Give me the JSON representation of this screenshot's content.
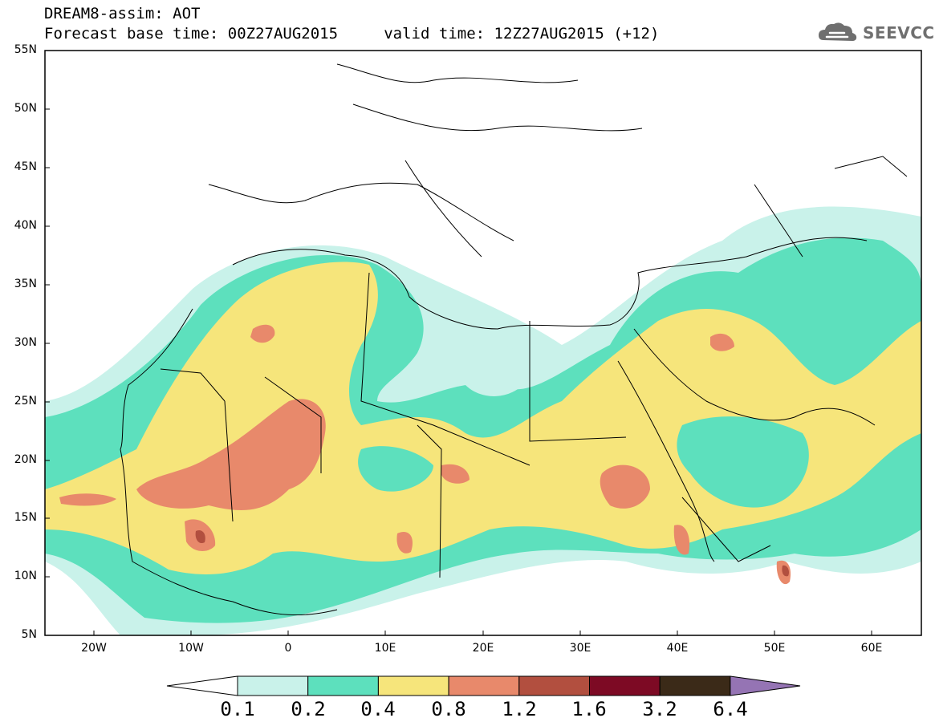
{
  "header": {
    "line1": "DREAM8-assim: AOT",
    "line2": "Forecast base time: 00Z27AUG2015     valid time: 12Z27AUG2015 (+12)"
  },
  "logo": {
    "text": "SEEVCCC",
    "icon": "cloud-icon"
  },
  "map": {
    "lon_range": [
      -25,
      65
    ],
    "lat_range": [
      5,
      55
    ],
    "lat_ticks": [
      "55N",
      "50N",
      "45N",
      "40N",
      "35N",
      "30N",
      "25N",
      "20N",
      "15N",
      "10N",
      "5N"
    ],
    "lon_ticks": [
      "20W",
      "10W",
      "0",
      "10E",
      "20E",
      "30E",
      "40E",
      "50E",
      "60E"
    ]
  },
  "colorbar": {
    "labels": [
      "0.1",
      "0.2",
      "0.4",
      "0.8",
      "1.2",
      "1.6",
      "3.2",
      "6.4"
    ],
    "colors": [
      "#c9f2ea",
      "#5de0bd",
      "#f6e57b",
      "#e8896b",
      "#b24f3f",
      "#7d0a24",
      "#3b2a18",
      "#9574b4"
    ],
    "under_color": "#ffffff",
    "over_color": "#9574b4"
  }
}
